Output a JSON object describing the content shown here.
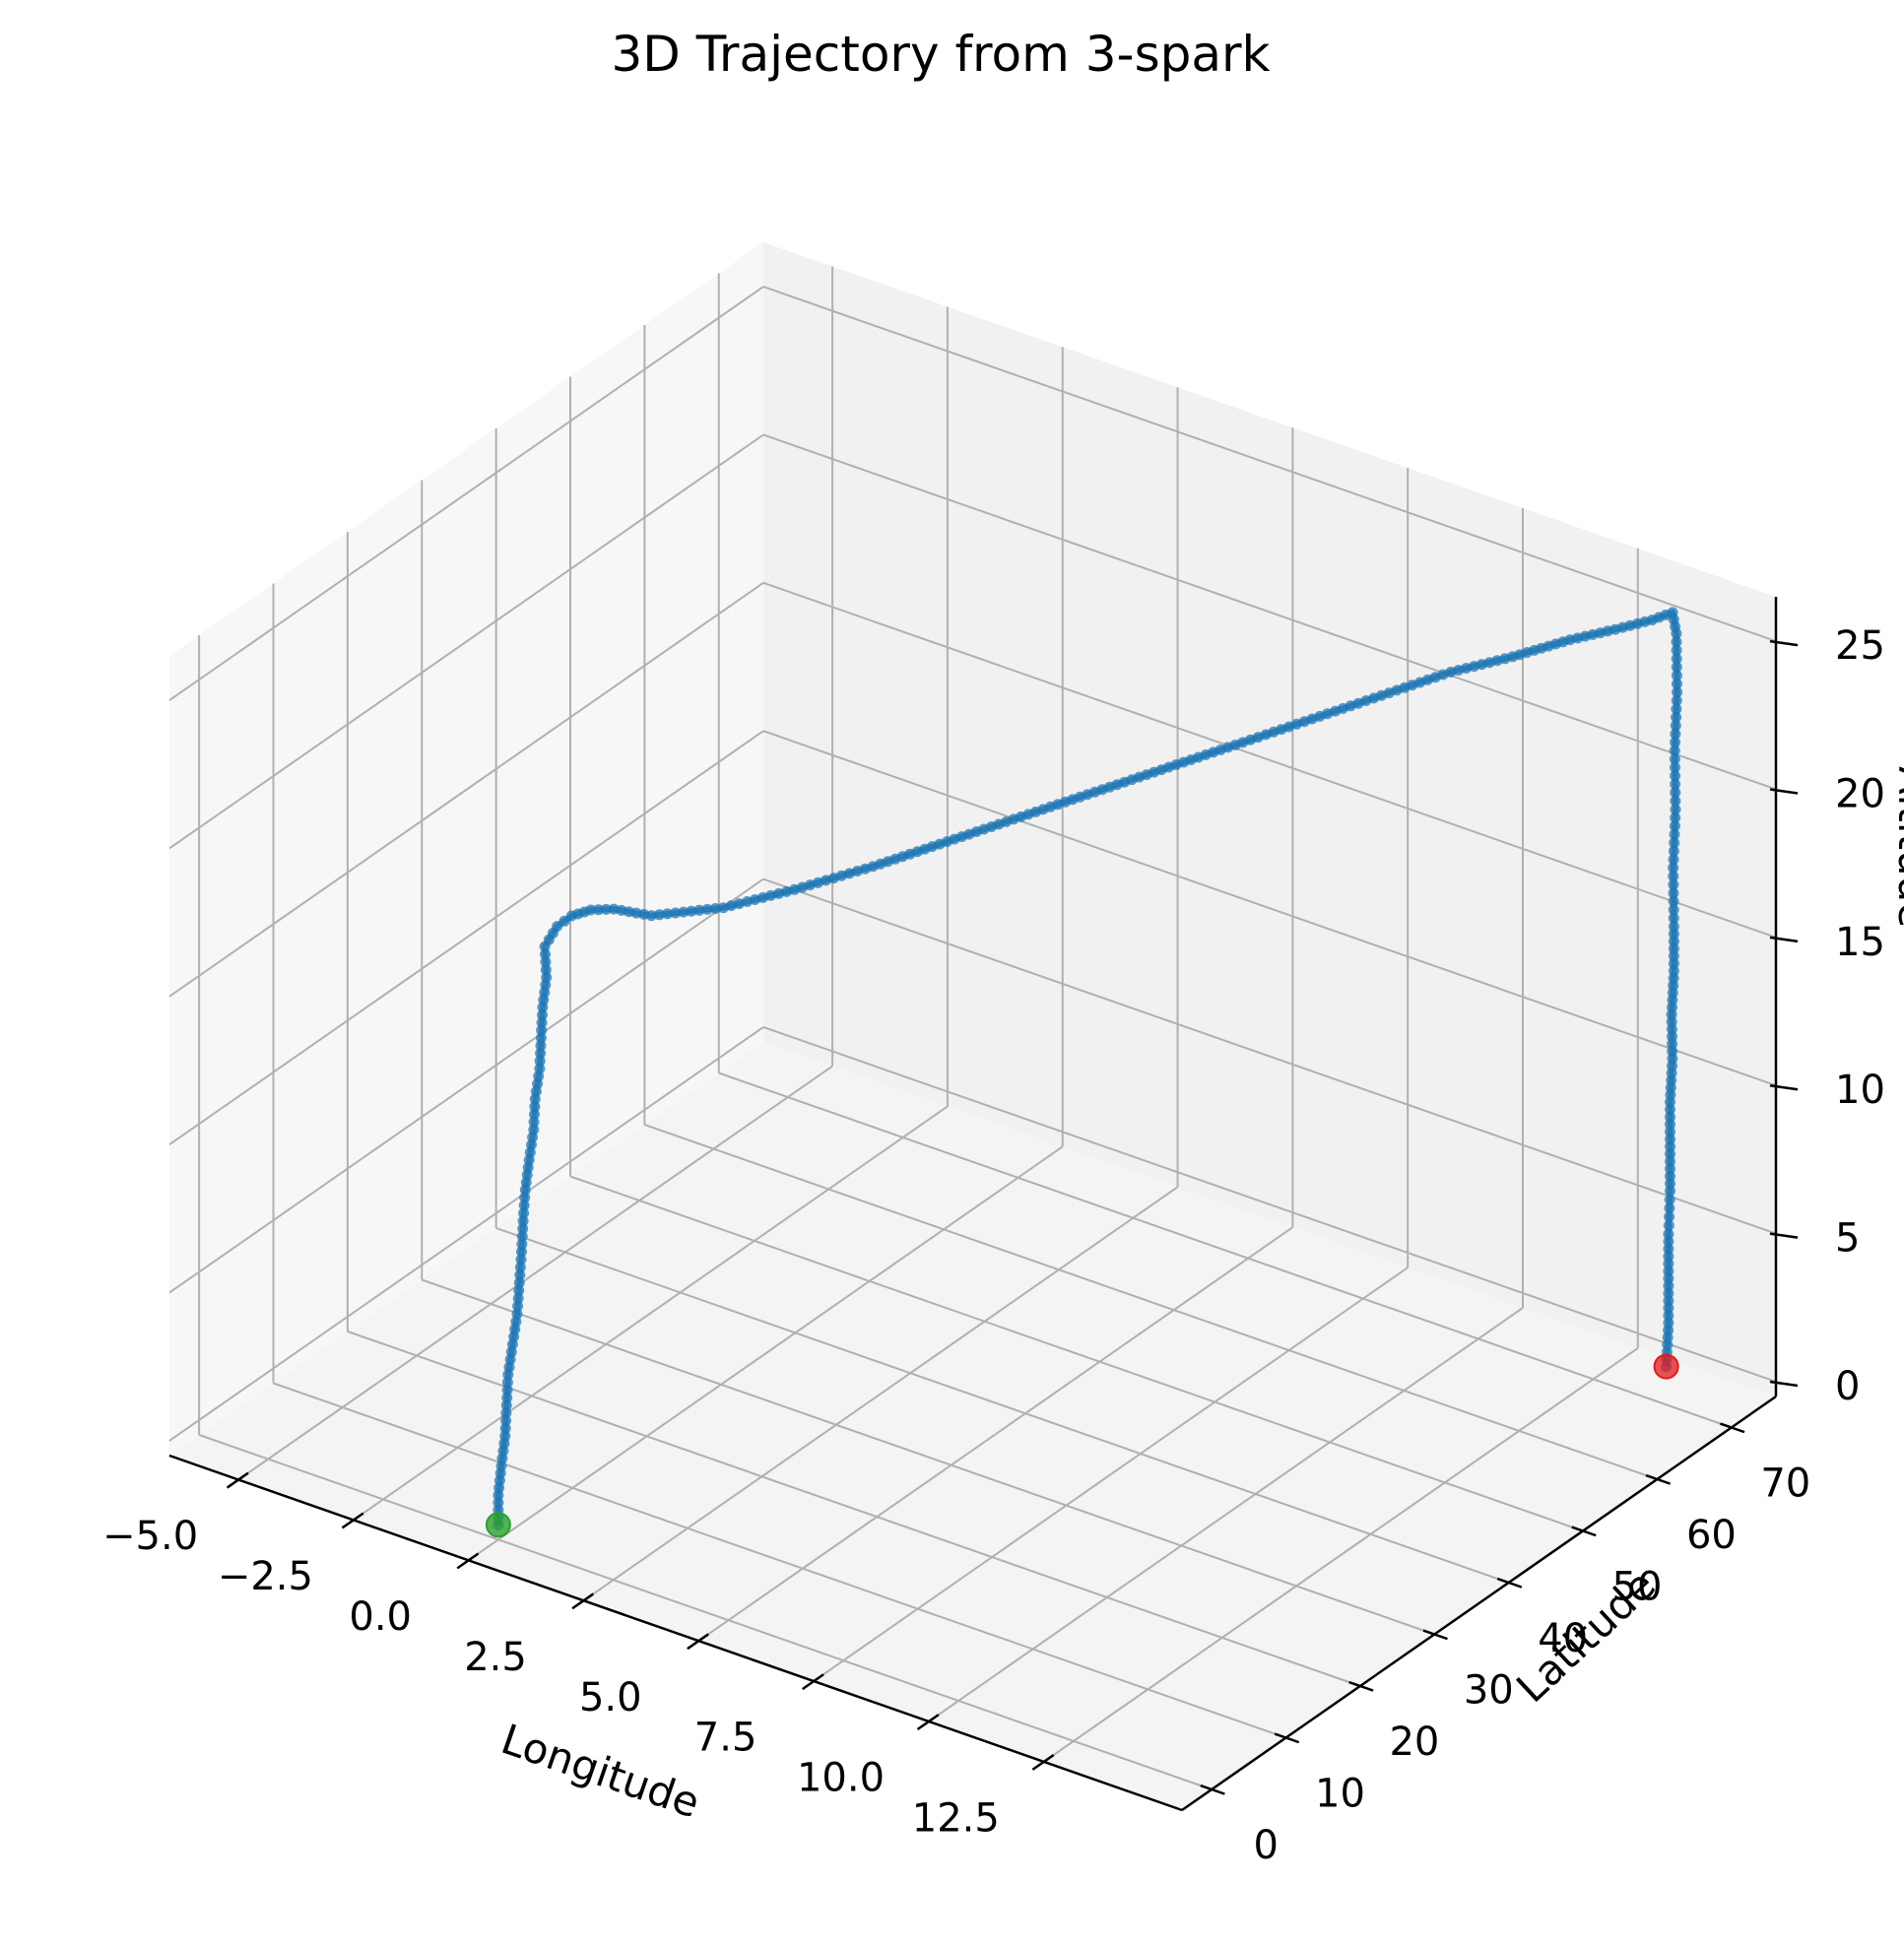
{
  "chart_data": {
    "type": "scatter",
    "projection": "3d",
    "title": "3D Trajectory from 3-spark",
    "xlabel": "Longitude",
    "ylabel": "Latitude",
    "zlabel": "Altitude",
    "xlim": [
      -6.5,
      15.5
    ],
    "ylim": [
      -4,
      76
    ],
    "zlim": [
      -0.5,
      26.5
    ],
    "xticks": [
      -5.0,
      -2.5,
      0.0,
      2.5,
      5.0,
      7.5,
      10.0,
      12.5
    ],
    "xtick_labels": [
      "−5.0",
      "−2.5",
      "0.0",
      "2.5",
      "5.0",
      "7.5",
      "10.0",
      "12.5"
    ],
    "yticks": [
      0,
      10,
      20,
      30,
      40,
      50,
      60,
      70
    ],
    "ytick_labels": [
      "0",
      "10",
      "20",
      "30",
      "40",
      "50",
      "60",
      "70"
    ],
    "zticks": [
      0,
      5,
      10,
      15,
      20,
      25
    ],
    "ztick_labels": [
      "0",
      "5",
      "10",
      "15",
      "20",
      "25"
    ],
    "grid": true,
    "colors": {
      "trajectory": "#1f77b4",
      "start": "#2ca02c",
      "end": "#e31a1c"
    },
    "markers": {
      "start": {
        "x": 0.0,
        "y": 0.0,
        "z": 0.0
      },
      "end": {
        "x": 13.6,
        "y": 73.0,
        "z": 0.0
      }
    },
    "series": [
      {
        "segment": "ascent",
        "x": [
          0.0,
          0.0,
          0.05,
          0.1,
          0.1,
          0.1,
          0.15,
          0.2,
          0.2,
          0.2,
          0.2,
          0.2,
          0.25,
          0.3,
          0.3,
          0.35,
          0.35,
          0.35,
          0.4,
          0.35
        ],
        "y": [
          0.0,
          0.0,
          0.1,
          0.3,
          0.5,
          0.7,
          1.0,
          1.3,
          1.6,
          1.9,
          2.1,
          2.4,
          2.6,
          2.9,
          3.1,
          3.4,
          3.6,
          3.8,
          4.0,
          4.1
        ],
        "z": [
          0.0,
          1.0,
          2.0,
          3.0,
          4.0,
          5.0,
          6.0,
          7.0,
          8.0,
          9.0,
          10.0,
          11.0,
          12.0,
          13.0,
          14.0,
          15.0,
          16.0,
          17.0,
          18.0,
          19.0
        ]
      },
      {
        "segment": "turn",
        "x": [
          0.6,
          0.9,
          1.3,
          1.8,
          2.6
        ],
        "y": [
          4.2,
          4.3,
          4.4,
          4.4,
          4.5
        ],
        "z": [
          19.8,
          20.3,
          20.7,
          21.0,
          21.2
        ]
      },
      {
        "segment": "cruise",
        "x": [
          3.6,
          4.5,
          5.4,
          6.2,
          7.0,
          7.8,
          8.6,
          9.4,
          10.1,
          10.8,
          11.5,
          12.2,
          12.8,
          13.3,
          13.7,
          13.9
        ],
        "y": [
          8.0,
          12.0,
          17.0,
          22.0,
          27.0,
          32.0,
          37.0,
          42.0,
          47.0,
          52.0,
          57.0,
          61.0,
          65.0,
          68.0,
          70.5,
          72.0
        ],
        "z": [
          21.4,
          21.8,
          22.2,
          22.6,
          23.0,
          23.4,
          23.8,
          24.2,
          24.5,
          24.8,
          25.1,
          25.3,
          25.5,
          25.6,
          25.7,
          25.8
        ]
      },
      {
        "segment": "descent",
        "x": [
          13.9,
          13.9,
          13.85,
          13.85,
          13.8,
          13.8,
          13.8,
          13.75,
          13.75,
          13.7,
          13.7,
          13.7,
          13.65,
          13.65,
          13.65,
          13.6
        ],
        "y": [
          72.5,
          72.6,
          72.6,
          72.7,
          72.7,
          72.8,
          72.8,
          72.8,
          72.9,
          72.9,
          72.9,
          72.9,
          73.0,
          73.0,
          73.0,
          73.0
        ],
        "z": [
          25.0,
          23.0,
          21.0,
          19.0,
          17.0,
          15.0,
          13.5,
          12.0,
          10.5,
          9.0,
          7.5,
          6.0,
          4.5,
          3.0,
          1.5,
          0.0
        ]
      }
    ]
  }
}
